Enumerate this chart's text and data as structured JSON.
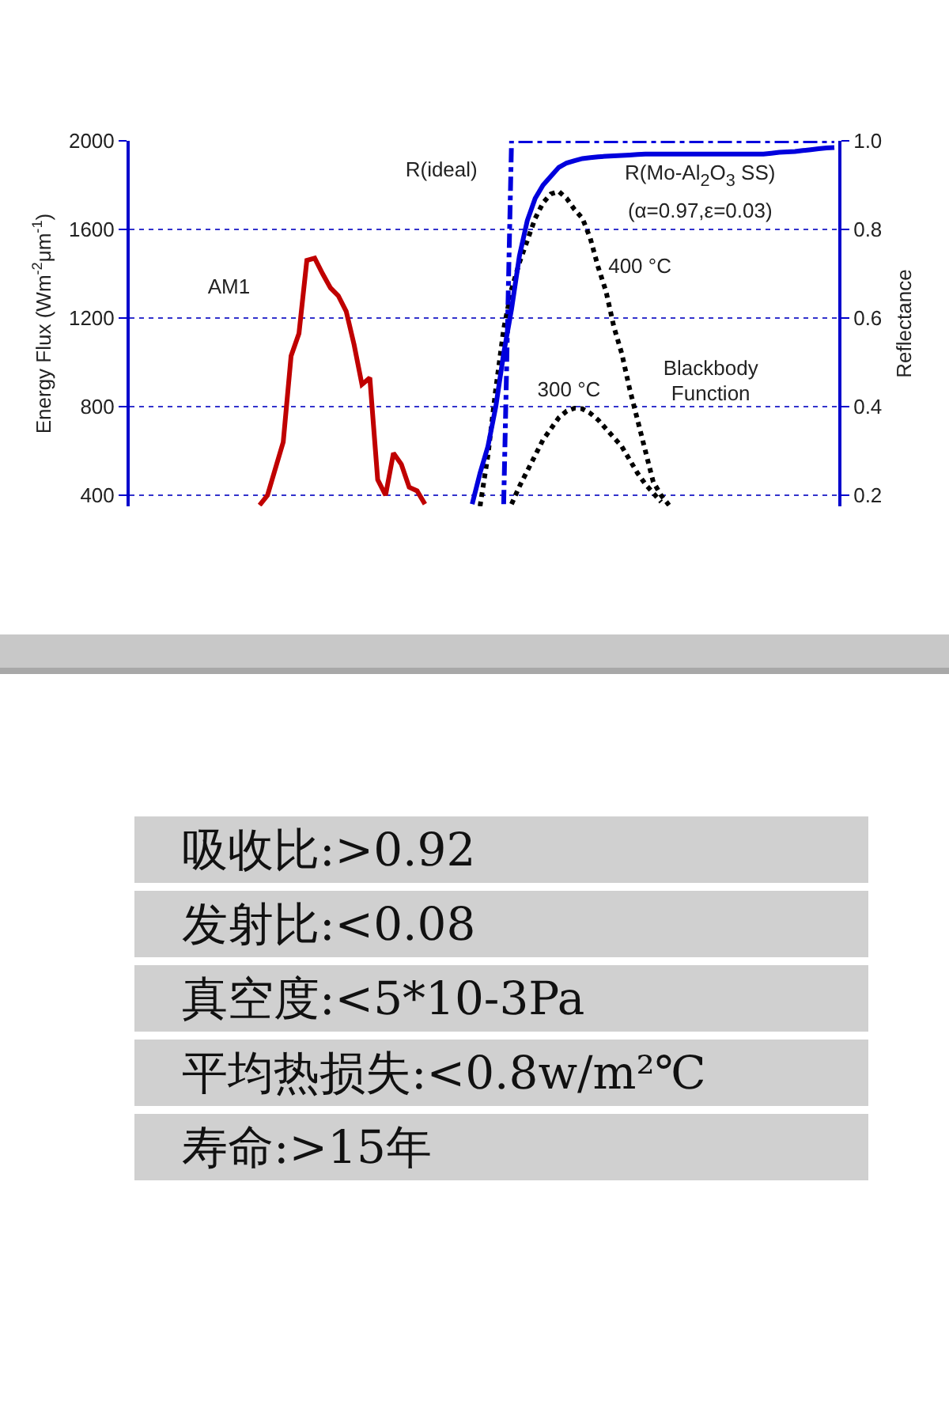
{
  "chart_data": [
    {
      "type": "line",
      "ylabel": "Energy Flux (Wm$^{-2}$μm$^{-1}$)",
      "y2label": "Reflectance",
      "categories": [
        null,
        null,
        null,
        null,
        null,
        null,
        null,
        null,
        null,
        null,
        null,
        null,
        null,
        null,
        null,
        null,
        null,
        null,
        null,
        null,
        null,
        null,
        null,
        null,
        null,
        null,
        null,
        null,
        null,
        null,
        null,
        null,
        null,
        null,
        null,
        null,
        null,
        null,
        null,
        null,
        null,
        null,
        null,
        null,
        null,
        null,
        null,
        null,
        null,
        null,
        null,
        null,
        null,
        null,
        null,
        null,
        null,
        null,
        null,
        null,
        null,
        null,
        null,
        null,
        null,
        null,
        null,
        null,
        null,
        null,
        null,
        null,
        null,
        null,
        null,
        null,
        null,
        null,
        null,
        null,
        null,
        null,
        null,
        null,
        null,
        null,
        null,
        null,
        null,
        null
      ],
      "ylim": [
        350,
        2000
      ],
      "yticks": [
        400,
        800,
        1200,
        1600,
        2000
      ],
      "y2lim": [
        0.175,
        1.0
      ],
      "y2ticks": [
        0.2,
        0.4,
        0.6,
        0.8,
        {
          "value": 1,
          "label": "1.0"
        }
      ],
      "grid": "y",
      "legend": false,
      "marker": "none",
      "tick_labels": "y",
      "series": [
        {
          "name": "AM1",
          "color": "#c00000",
          "line_style": "solid",
          "values": [
            null,
            null,
            null,
            null,
            null,
            null,
            null,
            null,
            null,
            null,
            null,
            null,
            null,
            null,
            null,
            null,
            355,
            400,
            520,
            640,
            1029,
            1130,
            1460,
            1470,
            1400,
            1336,
            1300,
            1230,
            1080,
            900,
            930,
            470,
            400,
            590,
            540,
            436,
            420,
            360,
            null,
            null,
            null,
            null,
            null,
            null,
            null,
            null,
            null,
            null,
            null,
            null,
            null,
            null,
            null,
            null,
            null,
            null,
            null,
            null,
            null,
            null,
            null,
            null,
            null,
            null,
            null,
            null,
            null,
            null,
            null,
            null,
            null,
            null,
            null,
            null,
            null,
            null,
            null,
            null,
            null,
            null,
            null,
            null,
            null,
            null,
            null,
            null,
            null,
            null,
            null,
            null
          ]
        },
        {
          "name": "400 °C",
          "color": "#000000",
          "line_style": "dotted",
          "values": [
            null,
            null,
            null,
            null,
            null,
            null,
            null,
            null,
            null,
            null,
            null,
            null,
            null,
            null,
            null,
            null,
            null,
            null,
            null,
            null,
            null,
            null,
            null,
            null,
            null,
            null,
            null,
            null,
            null,
            null,
            null,
            null,
            null,
            null,
            null,
            null,
            null,
            null,
            null,
            null,
            null,
            null,
            null,
            null,
            350,
            580,
            880,
            1150,
            1330,
            1450,
            1550,
            1650,
            1720,
            1760,
            1771,
            1740,
            1690,
            1650,
            1560,
            1430,
            1320,
            1160,
            1040,
            880,
            740,
            600,
            460,
            400,
            355,
            null,
            null,
            null,
            null,
            null,
            null,
            null,
            null,
            null,
            null,
            null,
            null,
            null,
            null,
            null,
            null,
            null,
            null,
            null,
            null,
            null
          ]
        },
        {
          "name": "300 °C",
          "color": "#000000",
          "line_style": "dotted",
          "values": [
            null,
            null,
            null,
            null,
            null,
            null,
            null,
            null,
            null,
            null,
            null,
            null,
            null,
            null,
            null,
            null,
            null,
            null,
            null,
            null,
            null,
            null,
            null,
            null,
            null,
            null,
            null,
            null,
            null,
            null,
            null,
            null,
            null,
            null,
            null,
            null,
            null,
            null,
            null,
            null,
            null,
            null,
            null,
            null,
            null,
            null,
            null,
            null,
            360,
            440,
            510,
            580,
            650,
            700,
            750,
            780,
            793,
            790,
            770,
            740,
            700,
            660,
            620,
            560,
            500,
            450,
            410,
            370,
            null,
            null,
            null,
            null,
            null,
            null,
            null,
            null,
            null,
            null,
            null,
            null,
            null,
            null,
            null,
            null,
            null,
            null,
            null,
            null,
            null,
            null
          ]
        },
        {
          "name": "R(ideal)",
          "color": "#0000dd",
          "line_style": "dashdot",
          "axis": "y2",
          "values": [
            null,
            null,
            null,
            null,
            null,
            null,
            null,
            null,
            null,
            null,
            null,
            null,
            null,
            null,
            null,
            null,
            null,
            null,
            null,
            null,
            null,
            null,
            null,
            null,
            null,
            null,
            null,
            null,
            null,
            null,
            null,
            null,
            null,
            null,
            null,
            null,
            null,
            null,
            null,
            null,
            null,
            null,
            null,
            null,
            null,
            null,
            null,
            0.18,
            1.0,
            1.0,
            1.0,
            1.0,
            1.0,
            1.0,
            1.0,
            1.0,
            1.0,
            1.0,
            1.0,
            1.0,
            1.0,
            1.0,
            1.0,
            1.0,
            1.0,
            1.0,
            1.0,
            1.0,
            1.0,
            1.0,
            1.0,
            1.0,
            1.0,
            1.0,
            1.0,
            1.0,
            1.0,
            1.0,
            1.0,
            1.0,
            1.0,
            1.0,
            1.0,
            1.0,
            1.0,
            1.0,
            1.0,
            1.0,
            1.0,
            1.0
          ]
        },
        {
          "name": "R(Mo-Al$_{2}$O$_{3}$ SS)",
          "color": "#0000dd",
          "line_style": "solid",
          "axis": "y2",
          "values": [
            null,
            null,
            null,
            null,
            null,
            null,
            null,
            null,
            null,
            null,
            null,
            null,
            null,
            null,
            null,
            null,
            null,
            null,
            null,
            null,
            null,
            null,
            null,
            null,
            null,
            null,
            null,
            null,
            null,
            null,
            null,
            null,
            null,
            null,
            null,
            null,
            null,
            null,
            null,
            null,
            null,
            null,
            null,
            0.18,
            0.25,
            0.31,
            0.4,
            0.52,
            0.62,
            0.74,
            0.82,
            0.87,
            0.9,
            0.92,
            0.94,
            0.95,
            0.955,
            0.96,
            0.962,
            0.964,
            0.965,
            0.966,
            0.967,
            0.968,
            0.969,
            0.97,
            0.97,
            0.97,
            0.97,
            0.97,
            0.97,
            0.97,
            0.97,
            0.97,
            0.97,
            0.97,
            0.97,
            0.97,
            0.97,
            0.97,
            0.97,
            0.972,
            0.974,
            0.975,
            0.976,
            0.978,
            0.98,
            0.982,
            0.984,
            0.985
          ]
        }
      ],
      "annotations": [
        "(α=0.97,ε=0.03)",
        "Blackbody Function"
      ]
    },
    {
      "type": "other",
      "annotations": [
        "吸收比:>0.92",
        "发射比:<0.08",
        "真空度:<5*10-3Pa",
        "平均热损失:<0.8w/m²℃",
        "寿命:>15年"
      ]
    }
  ]
}
